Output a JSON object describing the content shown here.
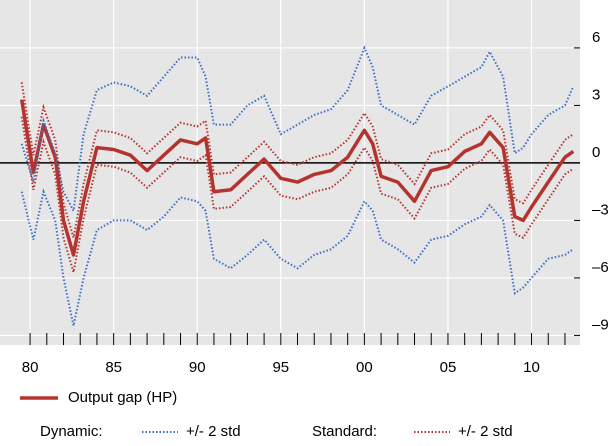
{
  "chart_data": {
    "type": "line",
    "x": [
      1979.5,
      1980.2,
      1980.8,
      1981.5,
      1982,
      1982.6,
      1983.2,
      1984,
      1985,
      1986,
      1987,
      1988,
      1989,
      1990,
      1990.5,
      1991,
      1992,
      1993,
      1994,
      1995,
      1996,
      1997,
      1998,
      1999,
      2000,
      2000.5,
      2001,
      2002,
      2003,
      2004,
      2005,
      2006,
      2007,
      2007.5,
      2008.3,
      2009,
      2009.5,
      2010,
      2011,
      2012,
      2012.5
    ],
    "series": [
      {
        "name": "Output gap (HP)",
        "color": "#b5332e",
        "style": "solid",
        "values": [
          3.3,
          -0.5,
          2.0,
          0.3,
          -3.0,
          -4.8,
          -2.0,
          0.8,
          0.7,
          0.4,
          -0.4,
          0.4,
          1.2,
          1.0,
          1.3,
          -1.5,
          -1.4,
          -0.6,
          0.2,
          -0.8,
          -1.0,
          -0.6,
          -0.4,
          0.3,
          1.7,
          1.0,
          -0.7,
          -1.0,
          -2.0,
          -0.4,
          -0.2,
          0.6,
          1.0,
          1.6,
          0.8,
          -2.8,
          -3.0,
          -2.3,
          -1.0,
          0.3,
          0.6
        ]
      },
      {
        "name": "+/- 2 std",
        "group": "Dynamic:",
        "color": "#3a6fc4",
        "style": "dotted",
        "values": [
          1.0,
          -1.0,
          2.2,
          0.5,
          -1.5,
          -2.5,
          1.5,
          3.8,
          4.2,
          4.0,
          3.5,
          4.5,
          5.5,
          5.5,
          4.5,
          2.0,
          2.0,
          3.0,
          3.5,
          1.5,
          2.0,
          2.5,
          2.8,
          3.8,
          6.0,
          5.0,
          3.0,
          2.5,
          2.0,
          3.5,
          4.0,
          4.5,
          5.0,
          5.8,
          4.5,
          0.5,
          0.8,
          1.5,
          2.5,
          3.0,
          4.0
        ]
      },
      {
        "name": "+/- 2 std",
        "group": "Dynamic:",
        "color": "#3a6fc4",
        "style": "dotted",
        "values": [
          -1.5,
          -4.0,
          -1.5,
          -3.0,
          -6.0,
          -8.5,
          -6.0,
          -3.5,
          -3.0,
          -3.0,
          -3.5,
          -2.8,
          -1.8,
          -2.0,
          -2.5,
          -5.0,
          -5.5,
          -4.8,
          -4.0,
          -5.0,
          -5.5,
          -4.8,
          -4.5,
          -3.8,
          -2.0,
          -2.5,
          -4.0,
          -4.5,
          -5.2,
          -4.0,
          -3.8,
          -3.2,
          -2.8,
          -2.2,
          -3.0,
          -6.8,
          -6.5,
          -6.0,
          -5.0,
          -4.8,
          -4.5
        ]
      },
      {
        "name": "+/- 2 std",
        "group": "Standard:",
        "color": "#b5332e",
        "style": "dotted",
        "values": [
          4.2,
          0.4,
          2.9,
          1.2,
          -2.1,
          -3.9,
          -1.1,
          1.7,
          1.6,
          1.3,
          0.5,
          1.3,
          2.1,
          1.9,
          2.2,
          -0.6,
          -0.5,
          0.3,
          1.1,
          0.1,
          -0.1,
          0.3,
          0.5,
          1.2,
          2.6,
          1.9,
          0.2,
          -0.1,
          -1.1,
          0.5,
          0.7,
          1.5,
          1.9,
          2.5,
          1.7,
          -1.9,
          -2.1,
          -1.4,
          -0.1,
          1.2,
          1.5
        ]
      },
      {
        "name": "+/- 2 std",
        "group": "Standard:",
        "color": "#b5332e",
        "style": "dotted",
        "values": [
          2.4,
          -1.4,
          1.1,
          -0.6,
          -3.9,
          -5.7,
          -2.9,
          -0.1,
          -0.2,
          -0.5,
          -1.3,
          -0.5,
          0.3,
          0.1,
          0.4,
          -2.4,
          -2.3,
          -1.5,
          -0.7,
          -1.7,
          -1.9,
          -1.5,
          -1.3,
          -0.6,
          0.8,
          0.1,
          -1.6,
          -1.9,
          -2.9,
          -1.3,
          -1.1,
          -0.3,
          0.1,
          0.7,
          -0.1,
          -3.7,
          -3.9,
          -3.2,
          -1.9,
          -0.6,
          -0.3
        ]
      }
    ],
    "xlim": [
      1978.2,
      2012.9
    ],
    "xticks": [
      {
        "value": 1980,
        "label": "80"
      },
      {
        "value": 1985,
        "label": "85"
      },
      {
        "value": 1990,
        "label": "90"
      },
      {
        "value": 1995,
        "label": "95"
      },
      {
        "value": 2000,
        "label": "00"
      },
      {
        "value": 2005,
        "label": "05"
      },
      {
        "value": 2010,
        "label": "10"
      }
    ],
    "xticks_minor": [
      1980,
      1981,
      1982,
      1983,
      1984,
      1985,
      1986,
      1987,
      1988,
      1989,
      1990,
      1991,
      1992,
      1993,
      1994,
      1995,
      1996,
      1997,
      1998,
      1999,
      2000,
      2001,
      2002,
      2003,
      2004,
      2005,
      2006,
      2007,
      2008,
      2009,
      2010,
      2011,
      2012
    ],
    "ylim": [
      -9.5,
      8.5
    ],
    "yticks": [
      6,
      3,
      0,
      {
        "value": -3,
        "label": "–3"
      },
      {
        "value": -6,
        "label": "–6"
      },
      {
        "value": -9,
        "label": "–9"
      }
    ],
    "grid": true,
    "zero_line": true
  }
}
